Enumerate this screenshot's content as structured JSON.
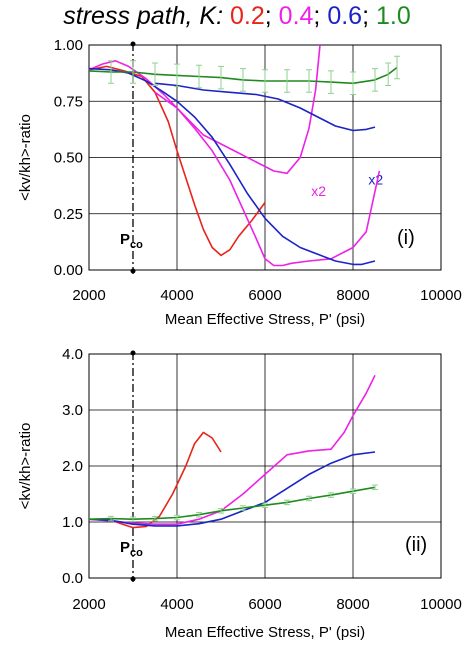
{
  "figure": {
    "title_prefix": "stress path, K:",
    "title_parts": [
      {
        "text": "0.2",
        "color": "#e8241c"
      },
      {
        "text": "0.4",
        "color": "#ee21e8"
      },
      {
        "text": "0.6",
        "color": "#1b24c4"
      },
      {
        "text": "1.0",
        "color": "#1f8a1f"
      }
    ]
  },
  "chart_data": [
    {
      "type": "line",
      "panel_label": "(i)",
      "xlabel": "Mean Effective Stress, P' (psi)",
      "ylabel": "<kv/kh>-ratio",
      "xlim": [
        2000,
        10000
      ],
      "ylim": [
        0,
        1
      ],
      "xticks": [
        2000,
        4000,
        6000,
        8000,
        10000
      ],
      "xtick_labels": [
        "2000",
        "4000",
        "6000",
        "8000",
        "10000"
      ],
      "yticks": [
        0,
        0.25,
        0.5,
        0.75,
        1.0
      ],
      "ytick_labels": [
        "0.00",
        "0.25",
        "0.50",
        "0.75",
        "1.00"
      ],
      "grid": true,
      "pco": {
        "x": 3000,
        "label": "P",
        "sub": "co"
      },
      "annotations": [
        {
          "text": "x2",
          "x": 7050,
          "y": 0.33,
          "color": "#ee21e8"
        },
        {
          "text": "x2",
          "x": 8350,
          "y": 0.38,
          "color": "#1b24c4"
        }
      ],
      "series": [
        {
          "key": "0.2",
          "color": "#e8241c",
          "points": [
            [
              2000,
              0.89
            ],
            [
              2400,
              0.905
            ],
            [
              2800,
              0.885
            ],
            [
              3200,
              0.86
            ],
            [
              3500,
              0.79
            ],
            [
              3800,
              0.66
            ],
            [
              4000,
              0.53
            ],
            [
              4200,
              0.41
            ],
            [
              4400,
              0.29
            ],
            [
              4600,
              0.18
            ],
            [
              4800,
              0.1
            ],
            [
              5000,
              0.065
            ],
            [
              5200,
              0.09
            ],
            [
              5400,
              0.15
            ],
            [
              5700,
              0.22
            ],
            [
              6000,
              0.3
            ]
          ]
        },
        {
          "key": "0.4",
          "color": "#ee21e8",
          "points": [
            [
              2000,
              0.89
            ],
            [
              2300,
              0.915
            ],
            [
              2600,
              0.93
            ],
            [
              2900,
              0.905
            ],
            [
              3300,
              0.85
            ],
            [
              3700,
              0.78
            ],
            [
              4000,
              0.72
            ],
            [
              4400,
              0.63
            ],
            [
              4800,
              0.53
            ],
            [
              5200,
              0.4
            ],
            [
              5500,
              0.27
            ],
            [
              5800,
              0.14
            ],
            [
              6000,
              0.05
            ],
            [
              6200,
              0.02
            ],
            [
              6400,
              0.02
            ],
            [
              6600,
              0.03
            ],
            [
              7000,
              0.04
            ],
            [
              7500,
              0.05
            ],
            [
              8000,
              0.1
            ],
            [
              8300,
              0.17
            ],
            [
              8500,
              0.35
            ],
            [
              8600,
              0.44
            ]
          ]
        },
        {
          "key": "0.4 (x2)",
          "color": "#ee21e8",
          "points": [
            [
              3500,
              0.79
            ],
            [
              4000,
              0.72
            ],
            [
              4600,
              0.6
            ],
            [
              5200,
              0.54
            ],
            [
              5800,
              0.48
            ],
            [
              6200,
              0.44
            ],
            [
              6500,
              0.43
            ],
            [
              6800,
              0.5
            ],
            [
              7000,
              0.63
            ],
            [
              7150,
              0.8
            ],
            [
              7250,
              1.0
            ]
          ]
        },
        {
          "key": "0.6",
          "color": "#1b24c4",
          "points": [
            [
              2000,
              0.895
            ],
            [
              2500,
              0.89
            ],
            [
              2900,
              0.875
            ],
            [
              3300,
              0.84
            ],
            [
              3700,
              0.79
            ],
            [
              4000,
              0.75
            ],
            [
              4400,
              0.68
            ],
            [
              4800,
              0.59
            ],
            [
              5200,
              0.47
            ],
            [
              5600,
              0.34
            ],
            [
              6000,
              0.23
            ],
            [
              6400,
              0.15
            ],
            [
              6800,
              0.1
            ],
            [
              7200,
              0.07
            ],
            [
              7600,
              0.04
            ],
            [
              8000,
              0.025
            ],
            [
              8200,
              0.025
            ],
            [
              8500,
              0.04
            ]
          ]
        },
        {
          "key": "0.6 (x2)",
          "color": "#1b24c4",
          "points": [
            [
              3500,
              0.83
            ],
            [
              4000,
              0.82
            ],
            [
              4600,
              0.8
            ],
            [
              5200,
              0.79
            ],
            [
              5800,
              0.78
            ],
            [
              6300,
              0.76
            ],
            [
              6800,
              0.72
            ],
            [
              7200,
              0.68
            ],
            [
              7600,
              0.64
            ],
            [
              8000,
              0.62
            ],
            [
              8300,
              0.625
            ],
            [
              8500,
              0.635
            ]
          ]
        },
        {
          "key": "1.0",
          "color": "#1f8a1f",
          "error_bars": true,
          "err": 0.05,
          "points": [
            [
              2000,
              0.885
            ],
            [
              2500,
              0.88
            ],
            [
              3000,
              0.88
            ],
            [
              3500,
              0.87
            ],
            [
              4000,
              0.865
            ],
            [
              4500,
              0.86
            ],
            [
              5000,
              0.855
            ],
            [
              5500,
              0.845
            ],
            [
              6000,
              0.84
            ],
            [
              6500,
              0.84
            ],
            [
              7000,
              0.84
            ],
            [
              7500,
              0.835
            ],
            [
              8000,
              0.83
            ],
            [
              8500,
              0.845
            ],
            [
              8800,
              0.87
            ],
            [
              9000,
              0.9
            ]
          ]
        }
      ]
    },
    {
      "type": "line",
      "panel_label": "(ii)",
      "xlabel": "Mean Effective Stress, P' (psi)",
      "ylabel": "<kv/kh>-ratio",
      "xlim": [
        2000,
        10000
      ],
      "ylim": [
        0,
        4
      ],
      "xticks": [
        2000,
        4000,
        6000,
        8000,
        10000
      ],
      "xtick_labels": [
        "2000",
        "4000",
        "6000",
        "8000",
        "10000"
      ],
      "yticks": [
        0,
        1,
        2,
        3,
        4
      ],
      "ytick_labels": [
        "0.0",
        "1.0",
        "2.0",
        "3.0",
        "4.0"
      ],
      "grid": true,
      "pco": {
        "x": 3000,
        "label": "P",
        "sub": "co"
      },
      "annotations": [],
      "series": [
        {
          "key": "0.2",
          "color": "#e8241c",
          "points": [
            [
              2000,
              1.05
            ],
            [
              2500,
              1.03
            ],
            [
              2800,
              0.95
            ],
            [
              3000,
              0.9
            ],
            [
              3300,
              0.92
            ],
            [
              3600,
              1.1
            ],
            [
              3900,
              1.5
            ],
            [
              4200,
              2.0
            ],
            [
              4400,
              2.4
            ],
            [
              4600,
              2.6
            ],
            [
              4800,
              2.5
            ],
            [
              5000,
              2.25
            ]
          ]
        },
        {
          "key": "0.4",
          "color": "#ee21e8",
          "points": [
            [
              2000,
              1.05
            ],
            [
              2500,
              1.02
            ],
            [
              3000,
              0.98
            ],
            [
              3500,
              0.96
            ],
            [
              4000,
              0.96
            ],
            [
              4500,
              1.05
            ],
            [
              5000,
              1.2
            ],
            [
              5500,
              1.5
            ],
            [
              6000,
              1.85
            ],
            [
              6500,
              2.2
            ],
            [
              7000,
              2.27
            ],
            [
              7500,
              2.3
            ],
            [
              7800,
              2.6
            ],
            [
              8000,
              2.9
            ],
            [
              8300,
              3.3
            ],
            [
              8500,
              3.62
            ]
          ]
        },
        {
          "key": "0.6",
          "color": "#1b24c4",
          "points": [
            [
              2000,
              1.05
            ],
            [
              2500,
              1.03
            ],
            [
              3000,
              0.96
            ],
            [
              3500,
              0.93
            ],
            [
              4000,
              0.93
            ],
            [
              4500,
              0.97
            ],
            [
              5000,
              1.05
            ],
            [
              5500,
              1.2
            ],
            [
              6000,
              1.35
            ],
            [
              6500,
              1.6
            ],
            [
              7000,
              1.85
            ],
            [
              7500,
              2.05
            ],
            [
              8000,
              2.2
            ],
            [
              8500,
              2.25
            ]
          ]
        },
        {
          "key": "1.0",
          "color": "#1f8a1f",
          "error_bars": true,
          "err": 0.04,
          "points": [
            [
              2000,
              1.05
            ],
            [
              2500,
              1.06
            ],
            [
              3000,
              1.05
            ],
            [
              3500,
              1.06
            ],
            [
              4000,
              1.08
            ],
            [
              4500,
              1.13
            ],
            [
              5000,
              1.2
            ],
            [
              5500,
              1.25
            ],
            [
              6000,
              1.3
            ],
            [
              6500,
              1.35
            ],
            [
              7000,
              1.42
            ],
            [
              7500,
              1.48
            ],
            [
              8000,
              1.55
            ],
            [
              8500,
              1.62
            ]
          ]
        }
      ]
    }
  ]
}
